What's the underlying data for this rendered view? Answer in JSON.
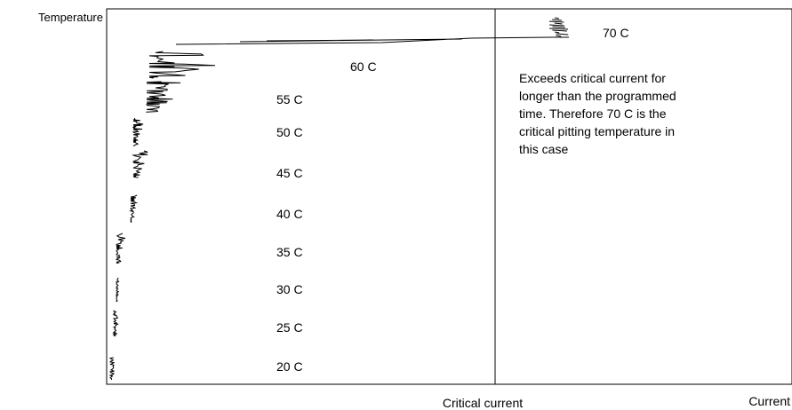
{
  "chart_data": {
    "type": "line",
    "ylabel": "Temperature",
    "xlabel": "Current",
    "reference_line_label": "Critical current",
    "series": [
      {
        "label": "20 C",
        "temperature": 20
      },
      {
        "label": "25 C",
        "temperature": 25
      },
      {
        "label": "30 C",
        "temperature": 30
      },
      {
        "label": "35 C",
        "temperature": 35
      },
      {
        "label": "40 C",
        "temperature": 40
      },
      {
        "label": "45 C",
        "temperature": 45
      },
      {
        "label": "50 C",
        "temperature": 50
      },
      {
        "label": "55 C",
        "temperature": 55
      },
      {
        "label": "60 C",
        "temperature": 60
      },
      {
        "label": "70 C",
        "temperature": 70
      }
    ],
    "annotation": "Exceeds critical current for longer than the programmed time.  Therefore 70 C is the critical pitting temperature in this case",
    "annotation_lines": [
      "Exceeds critical current for",
      "longer than the programmed",
      "time.  Therefore 70 C is the",
      "critical pitting temperature in",
      "this case"
    ],
    "grid": false,
    "legend": "none"
  },
  "colors": {
    "axis": "#000000",
    "trace": "#000000",
    "background": "#ffffff"
  }
}
